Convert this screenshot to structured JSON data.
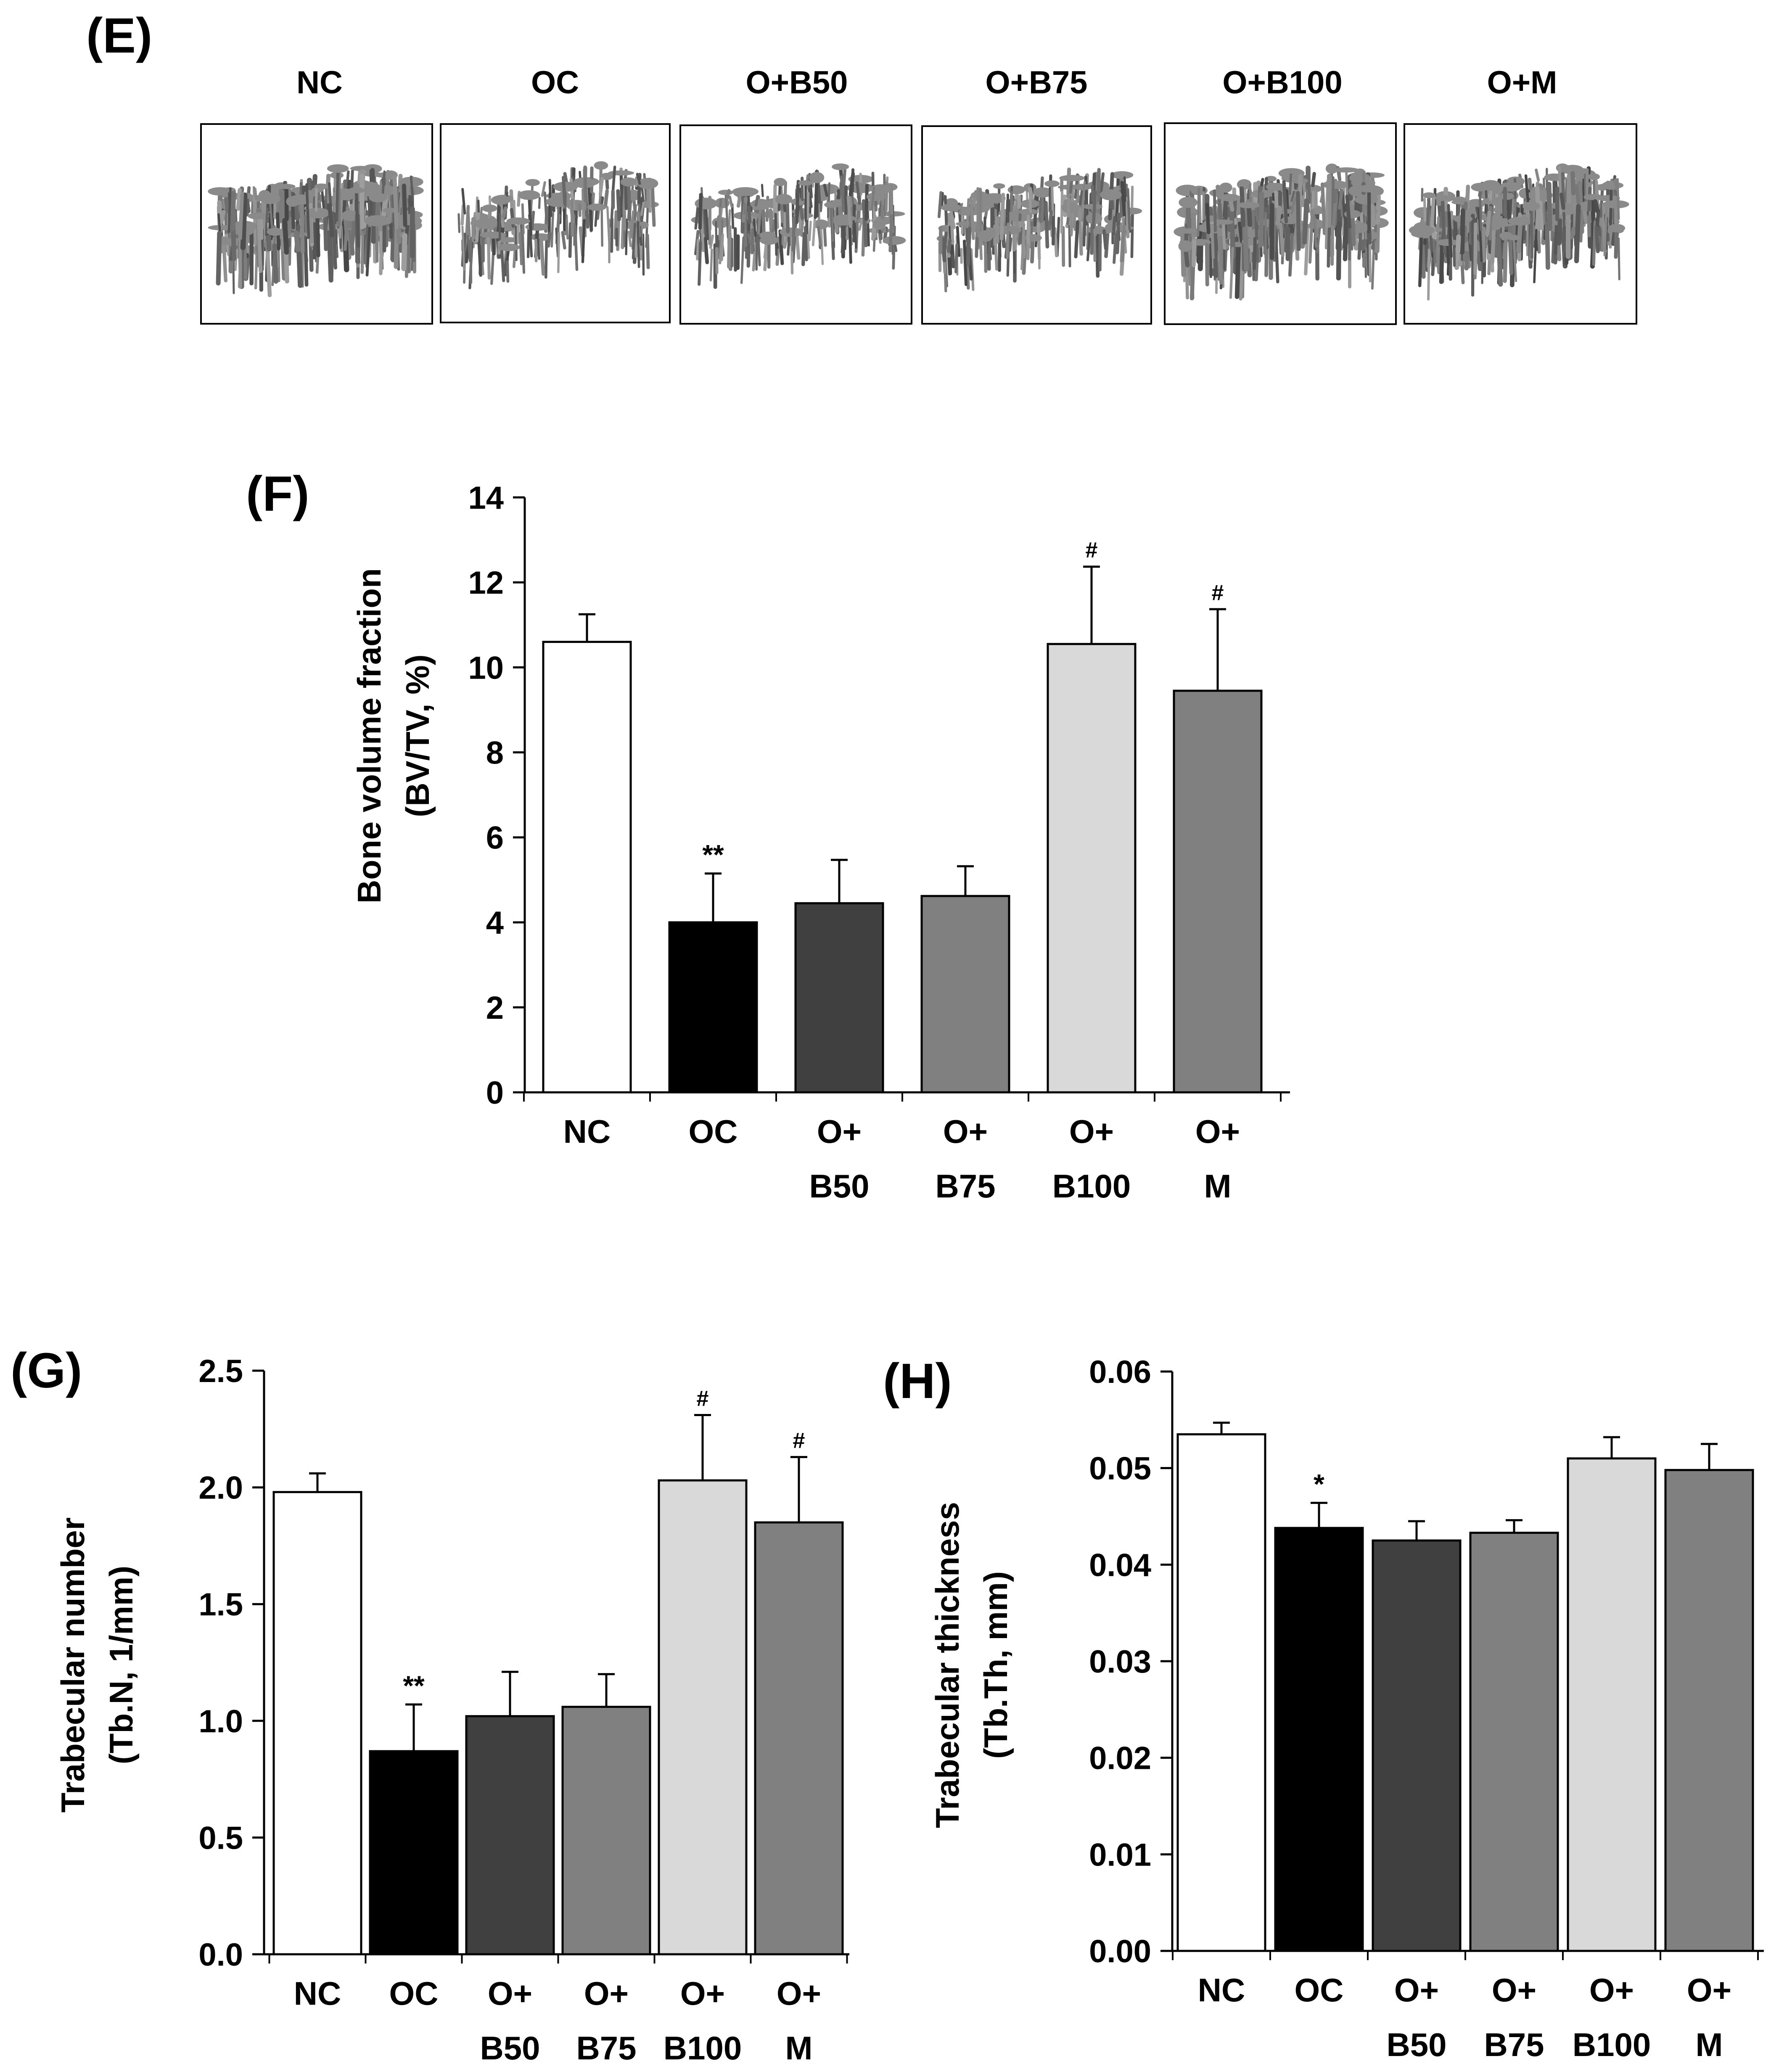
{
  "panel_e": {
    "label": "(E)",
    "groups": [
      "NC",
      "OC",
      "O+B50",
      "O+B75",
      "O+B100",
      "O+M"
    ],
    "image_density": [
      0.95,
      0.45,
      0.5,
      0.55,
      0.9,
      0.85
    ]
  },
  "colors": {
    "NC": "#ffffff",
    "OC": "#000000",
    "O+B50": "#404040",
    "O+B75": "#808080",
    "O+B100": "#d9d9d9",
    "O+M": "#808080",
    "axis": "#000000",
    "bone": "#8a8a8a"
  },
  "chart_data": [
    {
      "id": "F",
      "panel_label": "(F)",
      "type": "bar",
      "categories": [
        "NC",
        "OC",
        "O+ B50",
        "O+ B75",
        "O+ B100",
        "O+ M"
      ],
      "tick_line1": [
        "NC",
        "OC",
        "O+",
        "O+",
        "O+",
        "O+"
      ],
      "tick_line2": [
        "",
        "",
        "B50",
        "B75",
        "B100",
        "M"
      ],
      "values": [
        10.6,
        4.0,
        4.45,
        4.62,
        10.55,
        9.45
      ],
      "errors": [
        0.65,
        1.15,
        1.02,
        0.7,
        1.82,
        1.92
      ],
      "annotations": [
        "",
        "**",
        "",
        "",
        "#",
        "#"
      ],
      "ylabel_line1": "Bone volume fraction",
      "ylabel_line2": "(BV/TV, %)",
      "xlabel": "",
      "ylim": [
        0,
        14
      ],
      "yticks": [
        0,
        2,
        4,
        6,
        8,
        10,
        12,
        14
      ],
      "ytick_labels": [
        "0",
        "2",
        "4",
        "6",
        "8",
        "10",
        "12",
        "14"
      ]
    },
    {
      "id": "G",
      "panel_label": "(G)",
      "type": "bar",
      "categories": [
        "NC",
        "OC",
        "O+ B50",
        "O+ B75",
        "O+ B100",
        "O+ M"
      ],
      "tick_line1": [
        "NC",
        "OC",
        "O+",
        "O+",
        "O+",
        "O+"
      ],
      "tick_line2": [
        "",
        "",
        "B50",
        "B75",
        "B100",
        "M"
      ],
      "values": [
        1.98,
        0.87,
        1.02,
        1.06,
        2.03,
        1.85
      ],
      "errors": [
        0.08,
        0.2,
        0.19,
        0.14,
        0.28,
        0.28
      ],
      "annotations": [
        "",
        "**",
        "",
        "",
        "#",
        "#"
      ],
      "ylabel_line1": "Trabecular number",
      "ylabel_line2": "(Tb.N, 1/mm)",
      "xlabel": "",
      "ylim": [
        0,
        2.5
      ],
      "yticks": [
        0,
        0.5,
        1.0,
        1.5,
        2.0,
        2.5
      ],
      "ytick_labels": [
        "0.0",
        "0.5",
        "1.0",
        "1.5",
        "2.0",
        "2.5"
      ]
    },
    {
      "id": "H",
      "panel_label": "(H)",
      "type": "bar",
      "categories": [
        "NC",
        "OC",
        "O+ B50",
        "O+ B75",
        "O+ B100",
        "O+ M"
      ],
      "tick_line1": [
        "NC",
        "OC",
        "O+",
        "O+",
        "O+",
        "O+"
      ],
      "tick_line2": [
        "",
        "",
        "B50",
        "B75",
        "B100",
        "M"
      ],
      "values": [
        0.0535,
        0.0438,
        0.0425,
        0.0433,
        0.051,
        0.0498
      ],
      "errors": [
        0.0012,
        0.0026,
        0.002,
        0.0013,
        0.0022,
        0.0027
      ],
      "annotations": [
        "",
        "*",
        "",
        "",
        "",
        ""
      ],
      "ylabel_line1": "Trabecular thickness",
      "ylabel_line2": "(Tb.Th, mm)",
      "xlabel": "",
      "ylim": [
        0,
        0.06
      ],
      "yticks": [
        0,
        0.01,
        0.02,
        0.03,
        0.04,
        0.05,
        0.06
      ],
      "ytick_labels": [
        "0.00",
        "0.01",
        "0.02",
        "0.03",
        "0.04",
        "0.05",
        "0.06"
      ]
    }
  ]
}
